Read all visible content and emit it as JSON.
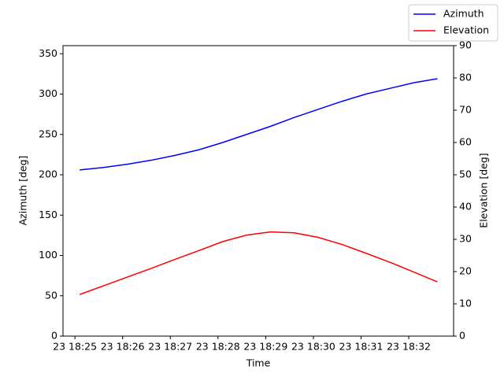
{
  "chart_data": {
    "type": "line",
    "xlabel": "Time",
    "ylabel": "Azimuth [deg]",
    "y2label": "Elevation [deg]",
    "x": [
      1105.1,
      1105.6,
      1106.1,
      1106.6,
      1107.1,
      1107.6,
      1108.1,
      1108.6,
      1109.1,
      1109.6,
      1110.1,
      1110.6,
      1111.1,
      1111.6,
      1112.1,
      1112.6
    ],
    "series": [
      {
        "name": "Azimuth",
        "color": "#0000ff",
        "values": [
          206,
          209,
          213,
          218,
          224,
          231,
          240,
          250,
          260,
          271,
          281,
          291,
          300,
          307,
          314,
          319
        ]
      },
      {
        "name": "Elevation",
        "color": "#ff0000",
        "axis": "y2",
        "values": [
          12.9,
          15.6,
          18.3,
          21.0,
          23.8,
          26.5,
          29.3,
          31.3,
          32.3,
          32.0,
          30.6,
          28.4,
          25.7,
          22.9,
          19.9,
          16.8
        ]
      }
    ],
    "xlim": [
      1104.75,
      1112.94
    ],
    "xticks": [
      {
        "value": 1105,
        "label": "23 18:25"
      },
      {
        "value": 1106,
        "label": "23 18:26"
      },
      {
        "value": 1107,
        "label": "23 18:27"
      },
      {
        "value": 1108,
        "label": "23 18:28"
      },
      {
        "value": 1109,
        "label": "23 18:29"
      },
      {
        "value": 1110,
        "label": "23 18:30"
      },
      {
        "value": 1111,
        "label": "23 18:31"
      },
      {
        "value": 1112,
        "label": "23 18:32"
      }
    ],
    "ylim": [
      0,
      360
    ],
    "yticks": [
      0,
      50,
      100,
      150,
      200,
      250,
      300,
      350
    ],
    "y2lim": [
      0,
      90
    ],
    "y2ticks": [
      0,
      10,
      20,
      30,
      40,
      50,
      60,
      70,
      80,
      90
    ],
    "legend": "upper right"
  }
}
